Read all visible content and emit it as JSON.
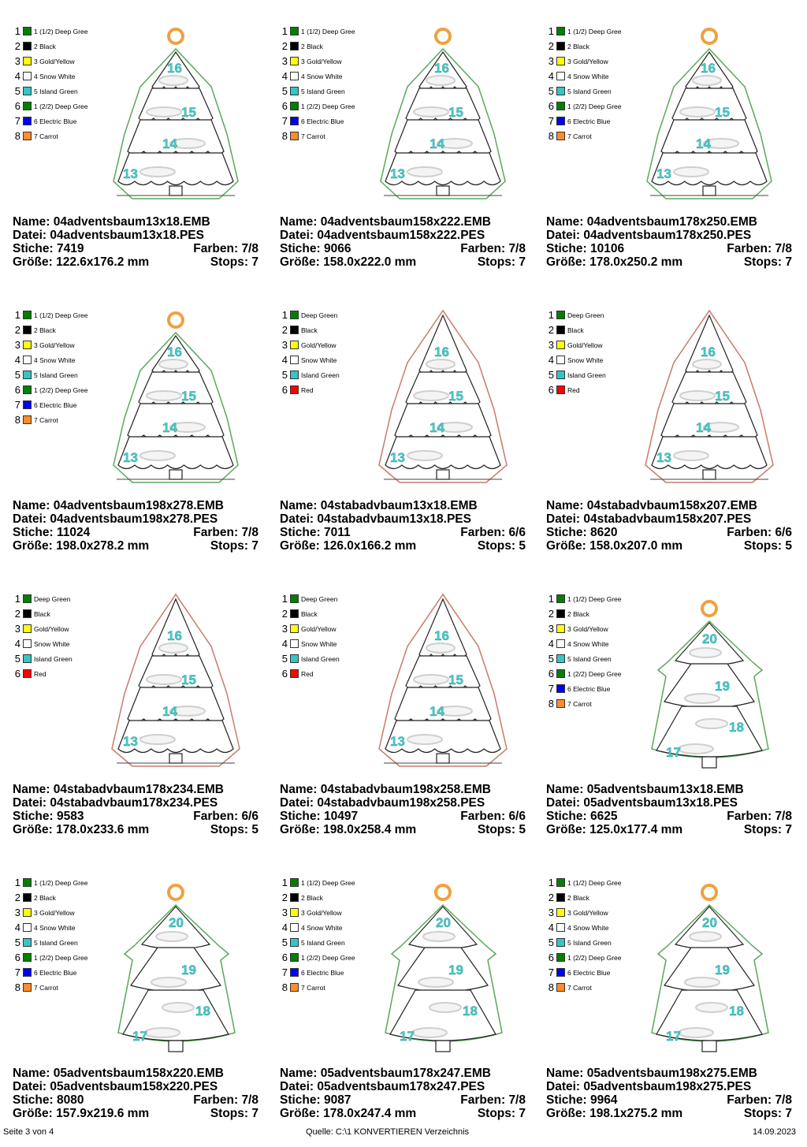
{
  "palettes": {
    "A": [
      {
        "num": "1",
        "label": "1 (1/2) Deep Gree",
        "color": "#008000"
      },
      {
        "num": "2",
        "label": "2 Black",
        "color": "#000000"
      },
      {
        "num": "3",
        "label": "3 Gold/Yellow",
        "color": "#ffff00"
      },
      {
        "num": "4",
        "label": "4 Snow White",
        "color": "#ffffff"
      },
      {
        "num": "5",
        "label": "5 Island Green",
        "color": "#33c6c6"
      },
      {
        "num": "6",
        "label": "1 (2/2) Deep Gree",
        "color": "#008000"
      },
      {
        "num": "7",
        "label": "6 Electric Blue",
        "color": "#0000ff"
      },
      {
        "num": "8",
        "label": "7 Carrot",
        "color": "#ff8c2a"
      }
    ],
    "B": [
      {
        "num": "1",
        "label": "Deep Green",
        "color": "#008000"
      },
      {
        "num": "2",
        "label": "Black",
        "color": "#000000"
      },
      {
        "num": "3",
        "label": "Gold/Yellow",
        "color": "#ffff00"
      },
      {
        "num": "4",
        "label": "Snow White",
        "color": "#ffffff"
      },
      {
        "num": "5",
        "label": "Island Green",
        "color": "#33c6c6"
      },
      {
        "num": "6",
        "label": "Red",
        "color": "#ff0000"
      }
    ]
  },
  "labels": {
    "name": "Name:",
    "file": "Datei:",
    "stitches": "Stiche:",
    "colors": "Farben:",
    "size": "Größe:",
    "stops": "Stops:"
  },
  "cards": [
    {
      "palette": "A",
      "design": "hanger",
      "numbers": [
        "16",
        "15",
        "14",
        "13"
      ],
      "name": "04adventsbaum13x18.EMB",
      "file": "04adventsbaum13x18.PES",
      "stitches": "7419",
      "colors": "7/8",
      "size": "122.6x176.2 mm",
      "stops": "7"
    },
    {
      "palette": "A",
      "design": "hanger",
      "numbers": [
        "16",
        "15",
        "14",
        "13"
      ],
      "name": "04adventsbaum158x222.EMB",
      "file": "04adventsbaum158x222.PES",
      "stitches": "9066",
      "colors": "7/8",
      "size": "158.0x222.0 mm",
      "stops": "7"
    },
    {
      "palette": "A",
      "design": "hanger",
      "numbers": [
        "16",
        "15",
        "14",
        "13"
      ],
      "name": "04adventsbaum178x250.EMB",
      "file": "04adventsbaum178x250.PES",
      "stitches": "10106",
      "colors": "7/8",
      "size": "178.0x250.2 mm",
      "stops": "7"
    },
    {
      "palette": "A",
      "design": "hanger",
      "numbers": [
        "16",
        "15",
        "14",
        "13"
      ],
      "name": "04adventsbaum198x278.EMB",
      "file": "04adventsbaum198x278.PES",
      "stitches": "11024",
      "colors": "7/8",
      "size": "198.0x278.2 mm",
      "stops": "7"
    },
    {
      "palette": "B",
      "design": "standing",
      "numbers": [
        "16",
        "15",
        "14",
        "13"
      ],
      "name": "04stabadvbaum13x18.EMB",
      "file": "04stabadvbaum13x18.PES",
      "stitches": "7011",
      "colors": "6/6",
      "size": "126.0x166.2 mm",
      "stops": "5"
    },
    {
      "palette": "B",
      "design": "standing",
      "numbers": [
        "16",
        "15",
        "14",
        "13"
      ],
      "name": "04stabadvbaum158x207.EMB",
      "file": "04stabadvbaum158x207.PES",
      "stitches": "8620",
      "colors": "6/6",
      "size": "158.0x207.0 mm",
      "stops": "5"
    },
    {
      "palette": "B",
      "design": "standing",
      "numbers": [
        "16",
        "15",
        "14",
        "13"
      ],
      "name": "04stabadvbaum178x234.EMB",
      "file": "04stabadvbaum178x234.PES",
      "stitches": "9583",
      "colors": "6/6",
      "size": "178.0x233.6 mm",
      "stops": "5"
    },
    {
      "palette": "B",
      "design": "standing",
      "numbers": [
        "16",
        "15",
        "14",
        "13"
      ],
      "name": "04stabadvbaum198x258.EMB",
      "file": "04stabadvbaum198x258.PES",
      "stitches": "10497",
      "colors": "6/6",
      "size": "198.0x258.4 mm",
      "stops": "5"
    },
    {
      "palette": "A",
      "design": "tier",
      "numbers": [
        "20",
        "19",
        "18",
        "17"
      ],
      "name": "05adventsbaum13x18.EMB",
      "file": "05adventsbaum13x18.PES",
      "stitches": "6625",
      "colors": "7/8",
      "size": "125.0x177.4 mm",
      "stops": "7"
    },
    {
      "palette": "A",
      "design": "tier",
      "numbers": [
        "20",
        "19",
        "18",
        "17"
      ],
      "name": "05adventsbaum158x220.EMB",
      "file": "05adventsbaum158x220.PES",
      "stitches": "8080",
      "colors": "7/8",
      "size": "157.9x219.6 mm",
      "stops": "7"
    },
    {
      "palette": "A",
      "design": "tier",
      "numbers": [
        "20",
        "19",
        "18",
        "17"
      ],
      "name": "05adventsbaum178x247.EMB",
      "file": "05adventsbaum178x247.PES",
      "stitches": "9087",
      "colors": "7/8",
      "size": "178.0x247.4 mm",
      "stops": "7"
    },
    {
      "palette": "A",
      "design": "tier",
      "numbers": [
        "20",
        "19",
        "18",
        "17"
      ],
      "name": "05adventsbaum198x275.EMB",
      "file": "05adventsbaum198x275.PES",
      "stitches": "9964",
      "colors": "7/8",
      "size": "198.1x275.2 mm",
      "stops": "7"
    }
  ],
  "footer": {
    "page": "Seite 3 von 4",
    "source": "Quelle: C:\\1 KONVERTIEREN Verzeichnis",
    "date": "14.09.2023"
  }
}
